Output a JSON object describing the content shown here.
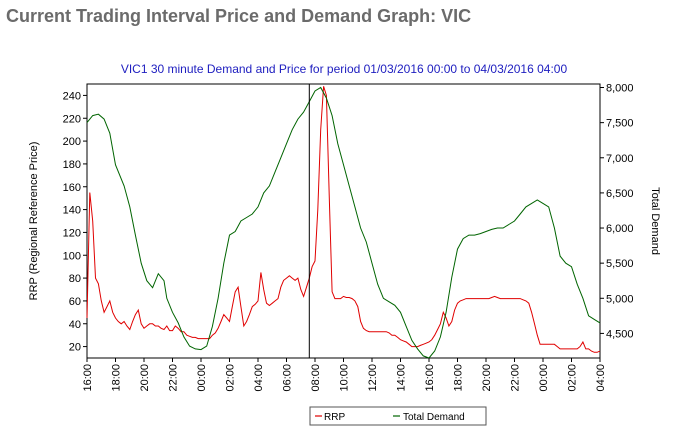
{
  "page": {
    "title": "Current Trading Interval Price and Demand Graph: VIC"
  },
  "colors": {
    "rrp": "#e00000",
    "demand": "#006400",
    "title": "#2020c0",
    "heading": "#6b6b6b",
    "axis": "#000000",
    "marker": "#000000"
  },
  "chart_data": {
    "type": "line",
    "title": "VIC1 30 minute Demand and Price for period 01/03/2016 00:00 to 04/03/2016 04:00",
    "ylabel": "RRP (Regional Reference Price)",
    "y2label": "Total Demand",
    "xlabel": "",
    "ylim": [
      10,
      250
    ],
    "y2lim": [
      4150,
      8050
    ],
    "xlim": [
      0,
      36
    ],
    "yticks": [
      20,
      40,
      60,
      80,
      100,
      120,
      140,
      160,
      180,
      200,
      220,
      240
    ],
    "y2ticks": [
      4500,
      5000,
      5500,
      6000,
      6500,
      7000,
      7500,
      8000
    ],
    "y2ticklabels": [
      "4,500",
      "5,000",
      "5,500",
      "6,000",
      "6,500",
      "7,000",
      "7,500",
      "8,000"
    ],
    "xticks": [
      0,
      2,
      4,
      6,
      8,
      10,
      12,
      14,
      16,
      18,
      20,
      22,
      24,
      26,
      28,
      30,
      32,
      34,
      36
    ],
    "xticklabels": [
      "16:00",
      "18:00",
      "20:00",
      "22:00",
      "00:00",
      "02:00",
      "04:00",
      "06:00",
      "08:00",
      "10:00",
      "12:00",
      "14:00",
      "16:00",
      "18:00",
      "20:00",
      "22:00",
      "00:00",
      "02:00",
      "04:00"
    ],
    "current_interval_x": 15.6,
    "legend_position": "bottom-center",
    "series": [
      {
        "name": "RRP",
        "axis": "left",
        "color": "#e00000",
        "points": [
          [
            0,
            45
          ],
          [
            0.2,
            155
          ],
          [
            0.4,
            130
          ],
          [
            0.6,
            80
          ],
          [
            0.8,
            75
          ],
          [
            1,
            60
          ],
          [
            1.2,
            50
          ],
          [
            1.4,
            55
          ],
          [
            1.6,
            60
          ],
          [
            1.8,
            50
          ],
          [
            2,
            45
          ],
          [
            2.2,
            42
          ],
          [
            2.4,
            40
          ],
          [
            2.6,
            42
          ],
          [
            2.8,
            38
          ],
          [
            3,
            35
          ],
          [
            3.2,
            42
          ],
          [
            3.4,
            48
          ],
          [
            3.6,
            52
          ],
          [
            3.8,
            40
          ],
          [
            4,
            36
          ],
          [
            4.2,
            38
          ],
          [
            4.4,
            40
          ],
          [
            4.6,
            40
          ],
          [
            4.8,
            38
          ],
          [
            5,
            38
          ],
          [
            5.2,
            36
          ],
          [
            5.4,
            35
          ],
          [
            5.6,
            38
          ],
          [
            5.8,
            34
          ],
          [
            6,
            34
          ],
          [
            6.2,
            38
          ],
          [
            6.4,
            36
          ],
          [
            6.6,
            33
          ],
          [
            6.8,
            33
          ],
          [
            7,
            30
          ],
          [
            7.2,
            29
          ],
          [
            7.4,
            28
          ],
          [
            7.6,
            28
          ],
          [
            7.8,
            27
          ],
          [
            8,
            27
          ],
          [
            8.2,
            27
          ],
          [
            8.4,
            27
          ],
          [
            8.6,
            27
          ],
          [
            8.8,
            30
          ],
          [
            9,
            32
          ],
          [
            9.2,
            36
          ],
          [
            9.4,
            42
          ],
          [
            9.6,
            48
          ],
          [
            9.8,
            45
          ],
          [
            10,
            42
          ],
          [
            10.2,
            55
          ],
          [
            10.4,
            68
          ],
          [
            10.6,
            72
          ],
          [
            10.8,
            55
          ],
          [
            11,
            38
          ],
          [
            11.2,
            42
          ],
          [
            11.4,
            48
          ],
          [
            11.6,
            55
          ],
          [
            11.8,
            57
          ],
          [
            12,
            60
          ],
          [
            12.2,
            85
          ],
          [
            12.4,
            70
          ],
          [
            12.6,
            58
          ],
          [
            12.8,
            56
          ],
          [
            13,
            58
          ],
          [
            13.2,
            60
          ],
          [
            13.4,
            62
          ],
          [
            13.6,
            72
          ],
          [
            13.8,
            78
          ],
          [
            14,
            80
          ],
          [
            14.2,
            82
          ],
          [
            14.4,
            80
          ],
          [
            14.6,
            78
          ],
          [
            14.8,
            80
          ],
          [
            15,
            70
          ],
          [
            15.2,
            64
          ],
          [
            15.4,
            72
          ],
          [
            15.6,
            80
          ],
          [
            15.8,
            90
          ],
          [
            16,
            95
          ],
          [
            16.2,
            140
          ],
          [
            16.4,
            210
          ],
          [
            16.6,
            248
          ],
          [
            16.8,
            240
          ],
          [
            17,
            150
          ],
          [
            17.2,
            68
          ],
          [
            17.4,
            62
          ],
          [
            17.6,
            62
          ],
          [
            17.8,
            62
          ],
          [
            18,
            64
          ],
          [
            18.2,
            63
          ],
          [
            18.4,
            63
          ],
          [
            18.6,
            62
          ],
          [
            18.8,
            60
          ],
          [
            19,
            55
          ],
          [
            19.2,
            42
          ],
          [
            19.4,
            36
          ],
          [
            19.6,
            34
          ],
          [
            19.8,
            33
          ],
          [
            20,
            33
          ],
          [
            20.2,
            33
          ],
          [
            20.4,
            33
          ],
          [
            20.6,
            33
          ],
          [
            20.8,
            33
          ],
          [
            21,
            33
          ],
          [
            21.2,
            32
          ],
          [
            21.4,
            30
          ],
          [
            21.6,
            30
          ],
          [
            21.8,
            28
          ],
          [
            22,
            26
          ],
          [
            22.2,
            25
          ],
          [
            22.4,
            24
          ],
          [
            22.6,
            22
          ],
          [
            22.8,
            20
          ],
          [
            23,
            20
          ],
          [
            23.2,
            20
          ],
          [
            23.4,
            21
          ],
          [
            23.6,
            22
          ],
          [
            23.8,
            23
          ],
          [
            24,
            24
          ],
          [
            24.2,
            26
          ],
          [
            24.4,
            30
          ],
          [
            24.6,
            35
          ],
          [
            24.8,
            40
          ],
          [
            25,
            50
          ],
          [
            25.2,
            45
          ],
          [
            25.4,
            38
          ],
          [
            25.6,
            42
          ],
          [
            25.8,
            52
          ],
          [
            26,
            58
          ],
          [
            26.2,
            60
          ],
          [
            26.4,
            61
          ],
          [
            26.6,
            62
          ],
          [
            26.8,
            62
          ],
          [
            27,
            62
          ],
          [
            27.2,
            62
          ],
          [
            27.4,
            62
          ],
          [
            27.6,
            62
          ],
          [
            27.8,
            62
          ],
          [
            28,
            62
          ],
          [
            28.2,
            62
          ],
          [
            28.4,
            63
          ],
          [
            28.6,
            64
          ],
          [
            28.8,
            63
          ],
          [
            29,
            62
          ],
          [
            29.2,
            62
          ],
          [
            29.4,
            62
          ],
          [
            29.6,
            62
          ],
          [
            29.8,
            62
          ],
          [
            30,
            62
          ],
          [
            30.2,
            62
          ],
          [
            30.4,
            62
          ],
          [
            30.6,
            61
          ],
          [
            30.8,
            60
          ],
          [
            31,
            58
          ],
          [
            31.2,
            50
          ],
          [
            31.4,
            40
          ],
          [
            31.6,
            30
          ],
          [
            31.8,
            22
          ],
          [
            32,
            22
          ],
          [
            32.2,
            22
          ],
          [
            32.4,
            22
          ],
          [
            32.6,
            22
          ],
          [
            32.8,
            22
          ],
          [
            33,
            20
          ],
          [
            33.2,
            18
          ],
          [
            33.4,
            18
          ],
          [
            33.6,
            18
          ],
          [
            33.8,
            18
          ],
          [
            34,
            18
          ],
          [
            34.2,
            18
          ],
          [
            34.4,
            18
          ],
          [
            34.6,
            20
          ],
          [
            34.8,
            24
          ],
          [
            35,
            18
          ],
          [
            35.2,
            18
          ],
          [
            35.4,
            16
          ],
          [
            35.6,
            15
          ],
          [
            35.8,
            15
          ],
          [
            36,
            16
          ]
        ]
      },
      {
        "name": "Total Demand",
        "axis": "right",
        "color": "#006400",
        "points": [
          [
            0,
            7500
          ],
          [
            0.4,
            7600
          ],
          [
            0.8,
            7620
          ],
          [
            1.2,
            7550
          ],
          [
            1.6,
            7350
          ],
          [
            2,
            6900
          ],
          [
            2.6,
            6600
          ],
          [
            3,
            6300
          ],
          [
            3.4,
            5900
          ],
          [
            3.8,
            5500
          ],
          [
            4.2,
            5250
          ],
          [
            4.6,
            5150
          ],
          [
            5,
            5350
          ],
          [
            5.4,
            5250
          ],
          [
            5.6,
            5000
          ],
          [
            6,
            4800
          ],
          [
            6.4,
            4650
          ],
          [
            6.8,
            4450
          ],
          [
            7.2,
            4320
          ],
          [
            7.6,
            4280
          ],
          [
            8,
            4270
          ],
          [
            8.4,
            4320
          ],
          [
            8.8,
            4600
          ],
          [
            9.2,
            5000
          ],
          [
            9.6,
            5500
          ],
          [
            10,
            5900
          ],
          [
            10.4,
            5950
          ],
          [
            10.8,
            6100
          ],
          [
            11.2,
            6150
          ],
          [
            11.6,
            6200
          ],
          [
            12,
            6300
          ],
          [
            12.4,
            6500
          ],
          [
            12.8,
            6600
          ],
          [
            13.2,
            6800
          ],
          [
            13.6,
            7000
          ],
          [
            14,
            7200
          ],
          [
            14.4,
            7400
          ],
          [
            14.8,
            7550
          ],
          [
            15.2,
            7650
          ],
          [
            15.6,
            7800
          ],
          [
            16,
            7950
          ],
          [
            16.4,
            8000
          ],
          [
            16.8,
            7850
          ],
          [
            17.2,
            7600
          ],
          [
            17.6,
            7200
          ],
          [
            18,
            6900
          ],
          [
            18.4,
            6600
          ],
          [
            18.8,
            6300
          ],
          [
            19.2,
            6000
          ],
          [
            19.6,
            5800
          ],
          [
            20,
            5500
          ],
          [
            20.4,
            5200
          ],
          [
            20.8,
            5000
          ],
          [
            21.2,
            4950
          ],
          [
            21.6,
            4900
          ],
          [
            22,
            4800
          ],
          [
            22.4,
            4600
          ],
          [
            22.8,
            4400
          ],
          [
            23.2,
            4280
          ],
          [
            23.6,
            4180
          ],
          [
            24,
            4150
          ],
          [
            24.4,
            4250
          ],
          [
            24.8,
            4450
          ],
          [
            25.2,
            4800
          ],
          [
            25.6,
            5300
          ],
          [
            26,
            5700
          ],
          [
            26.4,
            5850
          ],
          [
            26.8,
            5900
          ],
          [
            27.2,
            5900
          ],
          [
            27.6,
            5920
          ],
          [
            28,
            5950
          ],
          [
            28.4,
            5980
          ],
          [
            28.8,
            6000
          ],
          [
            29.2,
            6000
          ],
          [
            29.6,
            6050
          ],
          [
            30,
            6100
          ],
          [
            30.4,
            6200
          ],
          [
            30.8,
            6300
          ],
          [
            31.2,
            6350
          ],
          [
            31.6,
            6400
          ],
          [
            32,
            6350
          ],
          [
            32.4,
            6300
          ],
          [
            32.8,
            6000
          ],
          [
            33.2,
            5600
          ],
          [
            33.6,
            5500
          ],
          [
            34,
            5450
          ],
          [
            34.4,
            5200
          ],
          [
            34.8,
            5000
          ],
          [
            35.2,
            4750
          ],
          [
            35.6,
            4700
          ],
          [
            36,
            4650
          ]
        ]
      }
    ]
  }
}
